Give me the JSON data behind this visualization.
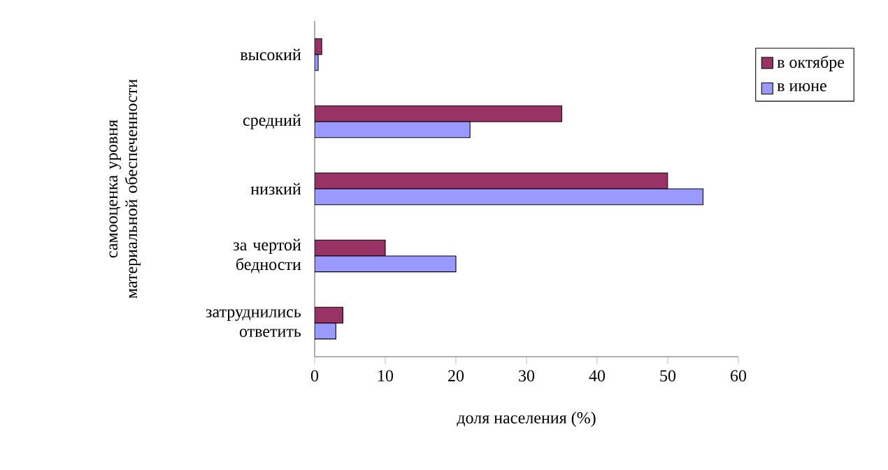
{
  "chart_data": {
    "type": "bar",
    "orientation": "horizontal",
    "xlabel": "доля населения (%)",
    "ylabel": "самооценка уровня материальной обеспеченности",
    "categories": [
      "высокий",
      "средний",
      "низкий",
      "за чертой бедности",
      "затруднились ответить"
    ],
    "series": [
      {
        "name": "в октябре",
        "color": "#993366",
        "values": [
          1,
          35,
          50,
          10,
          4
        ]
      },
      {
        "name": "в июне",
        "color": "#9999ff",
        "values": [
          0.5,
          22,
          55,
          20,
          3
        ]
      }
    ],
    "xlim": [
      0,
      60
    ],
    "xticks": [
      0,
      10,
      20,
      30,
      40,
      50,
      60
    ],
    "legend": "right"
  }
}
